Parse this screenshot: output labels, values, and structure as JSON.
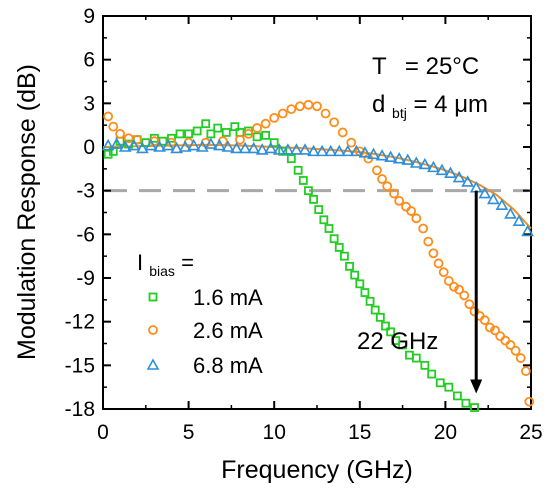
{
  "chart_data": {
    "type": "scatter",
    "xlabel": "Frequency (GHz)",
    "ylabel": "Modulation Response (dB)",
    "xlim": [
      0,
      25
    ],
    "ylim": [
      -18,
      9
    ],
    "xticks": [
      "0",
      "5",
      "10",
      "15",
      "20",
      "25"
    ],
    "yticks": [
      "9",
      "6",
      "3",
      "0",
      "-3",
      "-6",
      "-9",
      "-12",
      "-15",
      "-18"
    ],
    "reference_line_db": -3,
    "annotations": {
      "temp_label": "T",
      "temp_value": "= 25°C",
      "d_prefix": "d",
      "d_sub": "btj",
      "d_value": "= 4 μm",
      "bandwidth_label": "22 GHz",
      "bandwidth_marker_x": 21.8
    },
    "legend": {
      "title_main": "I",
      "title_sub": "bias",
      "title_suffix": " ="
    },
    "colors": {
      "green": "#22cc22",
      "orange": "#ff8c1a",
      "blue": "#2e8fd8",
      "dashed": "#a8a8a8"
    },
    "series": [
      {
        "name": "1.6 mA",
        "marker": "square",
        "color": "#22cc22",
        "points": [
          [
            0.3,
            -0.5
          ],
          [
            0.6,
            -0.3
          ],
          [
            1.0,
            0.4
          ],
          [
            1.5,
            0.2
          ],
          [
            2.0,
            0.5
          ],
          [
            2.5,
            0.3
          ],
          [
            3.0,
            0.6
          ],
          [
            3.5,
            0.4
          ],
          [
            4.0,
            0.6
          ],
          [
            4.5,
            0.9
          ],
          [
            5.0,
            0.9
          ],
          [
            5.5,
            1.1
          ],
          [
            6.0,
            1.6
          ],
          [
            6.3,
            0.9
          ],
          [
            6.7,
            1.3
          ],
          [
            7.2,
            1.0
          ],
          [
            7.7,
            1.4
          ],
          [
            8.0,
            1.0
          ],
          [
            8.5,
            1.1
          ],
          [
            9.0,
            0.7
          ],
          [
            9.5,
            0.8
          ],
          [
            10.0,
            0.3
          ],
          [
            10.5,
            -0.3
          ],
          [
            11.0,
            -0.8
          ],
          [
            11.4,
            -1.6
          ],
          [
            11.7,
            -2.3
          ],
          [
            12.0,
            -3.0
          ],
          [
            12.3,
            -3.6
          ],
          [
            12.6,
            -4.3
          ],
          [
            12.9,
            -5.0
          ],
          [
            13.2,
            -5.6
          ],
          [
            13.5,
            -6.3
          ],
          [
            13.8,
            -6.9
          ],
          [
            14.1,
            -7.5
          ],
          [
            14.4,
            -8.2
          ],
          [
            14.7,
            -8.8
          ],
          [
            15.0,
            -9.4
          ],
          [
            15.3,
            -10.0
          ],
          [
            15.6,
            -10.6
          ],
          [
            15.9,
            -11.2
          ],
          [
            16.2,
            -11.7
          ],
          [
            16.5,
            -12.3
          ],
          [
            16.8,
            -12.7
          ],
          [
            17.1,
            -13.3
          ],
          [
            17.5,
            -13.6
          ],
          [
            17.9,
            -14.3
          ],
          [
            18.3,
            -14.5
          ],
          [
            18.8,
            -15.0
          ],
          [
            19.2,
            -15.6
          ],
          [
            19.7,
            -16.2
          ],
          [
            20.2,
            -16.5
          ],
          [
            20.7,
            -17.1
          ],
          [
            21.2,
            -17.6
          ],
          [
            21.7,
            -17.9
          ]
        ]
      },
      {
        "name": "2.6 mA",
        "marker": "circle",
        "color": "#ff8c1a",
        "points": [
          [
            0.3,
            2.1
          ],
          [
            0.6,
            1.4
          ],
          [
            1.0,
            0.9
          ],
          [
            1.5,
            0.6
          ],
          [
            2.0,
            0.5
          ],
          [
            3.0,
            0.4
          ],
          [
            4.0,
            0.3
          ],
          [
            5.0,
            0.3
          ],
          [
            6.0,
            0.3
          ],
          [
            7.0,
            0.4
          ],
          [
            8.0,
            0.5
          ],
          [
            8.5,
            0.9
          ],
          [
            9.0,
            1.3
          ],
          [
            9.5,
            1.6
          ],
          [
            10.0,
            2.0
          ],
          [
            10.5,
            2.3
          ],
          [
            11.0,
            2.6
          ],
          [
            11.5,
            2.8
          ],
          [
            12.0,
            2.9
          ],
          [
            12.5,
            2.8
          ],
          [
            13.0,
            2.3
          ],
          [
            13.5,
            1.7
          ],
          [
            14.0,
            1.0
          ],
          [
            14.5,
            0.3
          ],
          [
            15.0,
            -0.3
          ],
          [
            15.5,
            -0.8
          ],
          [
            16.0,
            -1.6
          ],
          [
            16.3,
            -2.2
          ],
          [
            16.6,
            -2.7
          ],
          [
            17.0,
            -3.2
          ],
          [
            17.3,
            -3.7
          ],
          [
            17.7,
            -4.1
          ],
          [
            18.0,
            -4.4
          ],
          [
            18.3,
            -4.9
          ],
          [
            18.7,
            -5.6
          ],
          [
            19.0,
            -6.5
          ],
          [
            19.3,
            -7.3
          ],
          [
            19.6,
            -8.0
          ],
          [
            19.9,
            -8.6
          ],
          [
            20.2,
            -9.2
          ],
          [
            20.5,
            -9.6
          ],
          [
            20.8,
            -9.8
          ],
          [
            21.1,
            -10.2
          ],
          [
            21.4,
            -10.8
          ],
          [
            21.7,
            -11.3
          ],
          [
            22.0,
            -11.6
          ],
          [
            22.3,
            -11.9
          ],
          [
            22.6,
            -12.4
          ],
          [
            22.9,
            -12.6
          ],
          [
            23.2,
            -13.0
          ],
          [
            23.5,
            -13.3
          ],
          [
            23.8,
            -13.6
          ],
          [
            24.1,
            -14.0
          ],
          [
            24.4,
            -14.5
          ],
          [
            24.7,
            -15.4
          ],
          [
            24.9,
            -17.5
          ]
        ]
      },
      {
        "name": "6.8 mA",
        "marker": "triangle",
        "color": "#2e8fd8",
        "points": [
          [
            0.3,
            0.1
          ],
          [
            0.8,
            0.2
          ],
          [
            1.3,
            0.0
          ],
          [
            1.8,
            0.1
          ],
          [
            2.3,
            -0.1
          ],
          [
            2.8,
            0.1
          ],
          [
            3.3,
            0.0
          ],
          [
            3.8,
            0.1
          ],
          [
            4.3,
            -0.1
          ],
          [
            4.8,
            0.0
          ],
          [
            5.3,
            0.1
          ],
          [
            5.8,
            0.0
          ],
          [
            6.3,
            0.2
          ],
          [
            6.8,
            0.1
          ],
          [
            7.3,
            0.0
          ],
          [
            7.8,
            -0.1
          ],
          [
            8.3,
            -0.1
          ],
          [
            8.8,
            -0.1
          ],
          [
            9.3,
            -0.2
          ],
          [
            9.8,
            -0.1
          ],
          [
            10.3,
            -0.2
          ],
          [
            10.8,
            -0.2
          ],
          [
            11.3,
            -0.2
          ],
          [
            11.8,
            -0.2
          ],
          [
            12.3,
            -0.3
          ],
          [
            12.8,
            -0.3
          ],
          [
            13.3,
            -0.3
          ],
          [
            13.8,
            -0.3
          ],
          [
            14.3,
            -0.3
          ],
          [
            14.8,
            -0.3
          ],
          [
            15.3,
            -0.4
          ],
          [
            15.8,
            -0.5
          ],
          [
            16.3,
            -0.6
          ],
          [
            16.8,
            -0.7
          ],
          [
            17.3,
            -0.8
          ],
          [
            17.8,
            -0.9
          ],
          [
            18.3,
            -1.1
          ],
          [
            18.8,
            -1.2
          ],
          [
            19.3,
            -1.4
          ],
          [
            19.8,
            -1.6
          ],
          [
            20.3,
            -1.8
          ],
          [
            20.8,
            -2.1
          ],
          [
            21.3,
            -2.4
          ],
          [
            21.8,
            -2.8
          ],
          [
            22.3,
            -3.2
          ],
          [
            22.8,
            -3.6
          ],
          [
            23.3,
            -4.0
          ],
          [
            23.8,
            -4.6
          ],
          [
            24.3,
            -5.1
          ],
          [
            24.8,
            -5.8
          ]
        ]
      }
    ],
    "fit_curve": {
      "color": "#e8902a",
      "points": [
        [
          0,
          0.0
        ],
        [
          2,
          0.05
        ],
        [
          4,
          0.1
        ],
        [
          6,
          0.15
        ],
        [
          8,
          0.1
        ],
        [
          10,
          0.0
        ],
        [
          12,
          -0.1
        ],
        [
          14,
          -0.25
        ],
        [
          15,
          -0.35
        ],
        [
          16,
          -0.5
        ],
        [
          17,
          -0.7
        ],
        [
          18,
          -0.95
        ],
        [
          19,
          -1.25
        ],
        [
          20,
          -1.6
        ],
        [
          21,
          -2.05
        ],
        [
          22,
          -2.6
        ],
        [
          23,
          -3.3
        ],
        [
          24,
          -4.3
        ],
        [
          25,
          -5.6
        ]
      ]
    }
  }
}
